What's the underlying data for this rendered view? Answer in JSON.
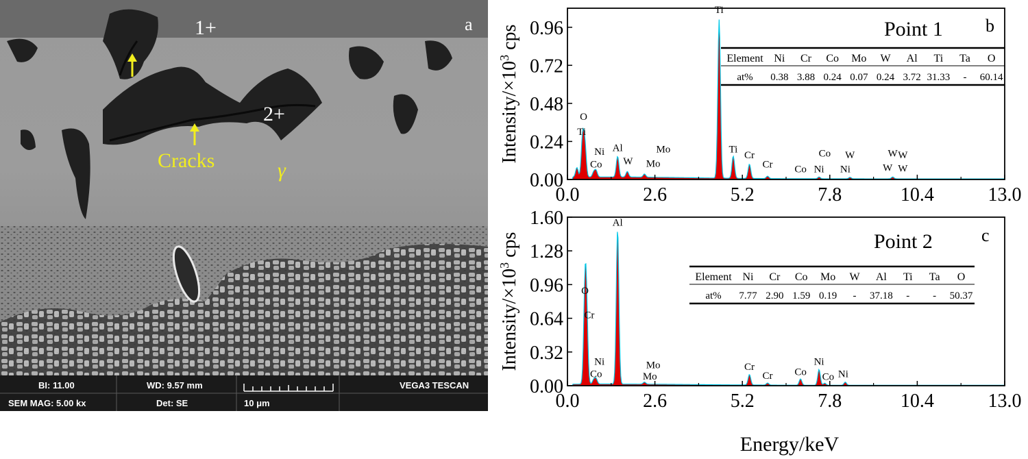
{
  "micrograph": {
    "panel_label": "a",
    "point_labels": [
      "1+",
      "2+"
    ],
    "cracks_label": "Cracks",
    "phase_label": "γ",
    "annotation_color": "#f2ee1e",
    "info_bar": {
      "bi": "BI: 11.00",
      "wd": "WD: 9.57 mm",
      "brand": "VEGA3 TESCAN",
      "mag": "SEM MAG: 5.00 kx",
      "det": "Det: SE",
      "scale": "10 μm"
    }
  },
  "xlabel": "Energy/keV",
  "chart_data": [
    {
      "type": "area",
      "panel_label": "b",
      "point_title": "Point 1",
      "ylabel_main": "Intensity/×10",
      "ylabel_sup": "3",
      "ylabel_unit": " cps",
      "xlim": [
        0,
        13
      ],
      "ylim": [
        0,
        1.08
      ],
      "x_ticks": [
        "0.0",
        "2.6",
        "5.2",
        "7.8",
        "10.4",
        "13.0"
      ],
      "y_ticks": [
        "0.00",
        "0.24",
        "0.48",
        "0.72",
        "0.96"
      ],
      "fill_color": "#e00000",
      "line_color": "#00c8e8",
      "table": {
        "headers": [
          "Element",
          "Ni",
          "Cr",
          "Co",
          "Mo",
          "W",
          "Al",
          "Ti",
          "Ta",
          "O"
        ],
        "values": [
          "at%",
          "0.38",
          "3.88",
          "0.24",
          "0.07",
          "0.24",
          "3.72",
          "31.33",
          "-",
          "60.14"
        ]
      },
      "peaks": [
        {
          "e": 0.28,
          "i": 0.06
        },
        {
          "e": 0.45,
          "i": 0.25
        },
        {
          "e": 0.52,
          "i": 0.2
        },
        {
          "e": 0.78,
          "i": 0.03
        },
        {
          "e": 0.85,
          "i": 0.04
        },
        {
          "e": 1.49,
          "i": 0.13
        },
        {
          "e": 1.78,
          "i": 0.035
        },
        {
          "e": 2.29,
          "i": 0.02
        },
        {
          "e": 4.51,
          "i": 1.0
        },
        {
          "e": 4.93,
          "i": 0.14
        },
        {
          "e": 5.41,
          "i": 0.09
        },
        {
          "e": 5.95,
          "i": 0.015
        },
        {
          "e": 7.48,
          "i": 0.012
        },
        {
          "e": 8.4,
          "i": 0.01
        },
        {
          "e": 9.67,
          "i": 0.012
        }
      ],
      "labels": [
        {
          "t": "O",
          "e": 0.48,
          "i": 0.375
        },
        {
          "t": "Ti",
          "e": 0.42,
          "i": 0.28
        },
        {
          "t": "Ni",
          "e": 0.95,
          "i": 0.155
        },
        {
          "t": "Co",
          "e": 0.85,
          "i": 0.075
        },
        {
          "t": "Al",
          "e": 1.49,
          "i": 0.18
        },
        {
          "t": "W",
          "e": 1.8,
          "i": 0.095
        },
        {
          "t": "Mo",
          "e": 2.85,
          "i": 0.17
        },
        {
          "t": "Mo",
          "e": 2.55,
          "i": 0.08
        },
        {
          "t": "Ti",
          "e": 4.51,
          "i": 1.05
        },
        {
          "t": "Ti",
          "e": 4.93,
          "i": 0.17
        },
        {
          "t": "Cr",
          "e": 5.41,
          "i": 0.135
        },
        {
          "t": "Cr",
          "e": 5.95,
          "i": 0.075
        },
        {
          "t": "Co",
          "e": 6.93,
          "i": 0.045
        },
        {
          "t": "Ni",
          "e": 7.48,
          "i": 0.045
        },
        {
          "t": "Co",
          "e": 7.65,
          "i": 0.145
        },
        {
          "t": "W",
          "e": 8.4,
          "i": 0.135
        },
        {
          "t": "Ni",
          "e": 8.26,
          "i": 0.045
        },
        {
          "t": "W",
          "e": 9.67,
          "i": 0.145
        },
        {
          "t": "W",
          "e": 9.97,
          "i": 0.135
        },
        {
          "t": "W",
          "e": 9.52,
          "i": 0.055
        },
        {
          "t": "W",
          "e": 9.97,
          "i": 0.05
        }
      ]
    },
    {
      "type": "area",
      "panel_label": "c",
      "point_title": "Point 2",
      "ylabel_main": "Intensity/×10",
      "ylabel_sup": "3",
      "ylabel_unit": " cps",
      "xlim": [
        0,
        13
      ],
      "ylim": [
        0,
        1.6
      ],
      "x_ticks": [
        "0.0",
        "2.6",
        "5.2",
        "7.8",
        "10.4",
        "13.0"
      ],
      "y_ticks": [
        "0.00",
        "0.32",
        "0.64",
        "0.96",
        "1.28",
        "1.60"
      ],
      "fill_color": "#e00000",
      "line_color": "#00c8e8",
      "table": {
        "headers": [
          "Element",
          "Ni",
          "Cr",
          "Co",
          "Mo",
          "W",
          "Al",
          "Ti",
          "Ta",
          "O"
        ],
        "values": [
          "at%",
          "7.77",
          "2.90",
          "1.59",
          "0.19",
          "-",
          "37.18",
          "-",
          "-",
          "50.37"
        ]
      },
      "peaks": [
        {
          "e": 0.52,
          "i": 0.82
        },
        {
          "e": 0.57,
          "i": 0.6
        },
        {
          "e": 0.78,
          "i": 0.04
        },
        {
          "e": 0.85,
          "i": 0.05
        },
        {
          "e": 1.49,
          "i": 1.47
        },
        {
          "e": 2.29,
          "i": 0.02
        },
        {
          "e": 5.41,
          "i": 0.1
        },
        {
          "e": 5.95,
          "i": 0.02
        },
        {
          "e": 6.93,
          "i": 0.06
        },
        {
          "e": 7.48,
          "i": 0.15
        },
        {
          "e": 7.65,
          "i": 0.02
        },
        {
          "e": 8.26,
          "i": 0.03
        }
      ],
      "labels": [
        {
          "t": "O",
          "e": 0.52,
          "i": 0.87
        },
        {
          "t": "Cr",
          "e": 0.65,
          "i": 0.64
        },
        {
          "t": "Ni",
          "e": 0.95,
          "i": 0.2
        },
        {
          "t": "Co",
          "e": 0.85,
          "i": 0.08
        },
        {
          "t": "Al",
          "e": 1.49,
          "i": 1.52
        },
        {
          "t": "Mo",
          "e": 2.55,
          "i": 0.165
        },
        {
          "t": "Mo",
          "e": 2.45,
          "i": 0.06
        },
        {
          "t": "Cr",
          "e": 5.41,
          "i": 0.15
        },
        {
          "t": "Cr",
          "e": 5.95,
          "i": 0.065
        },
        {
          "t": "Co",
          "e": 6.93,
          "i": 0.1
        },
        {
          "t": "Ni",
          "e": 7.48,
          "i": 0.2
        },
        {
          "t": "Co",
          "e": 7.75,
          "i": 0.055
        },
        {
          "t": "Ni",
          "e": 8.2,
          "i": 0.08
        }
      ]
    }
  ]
}
